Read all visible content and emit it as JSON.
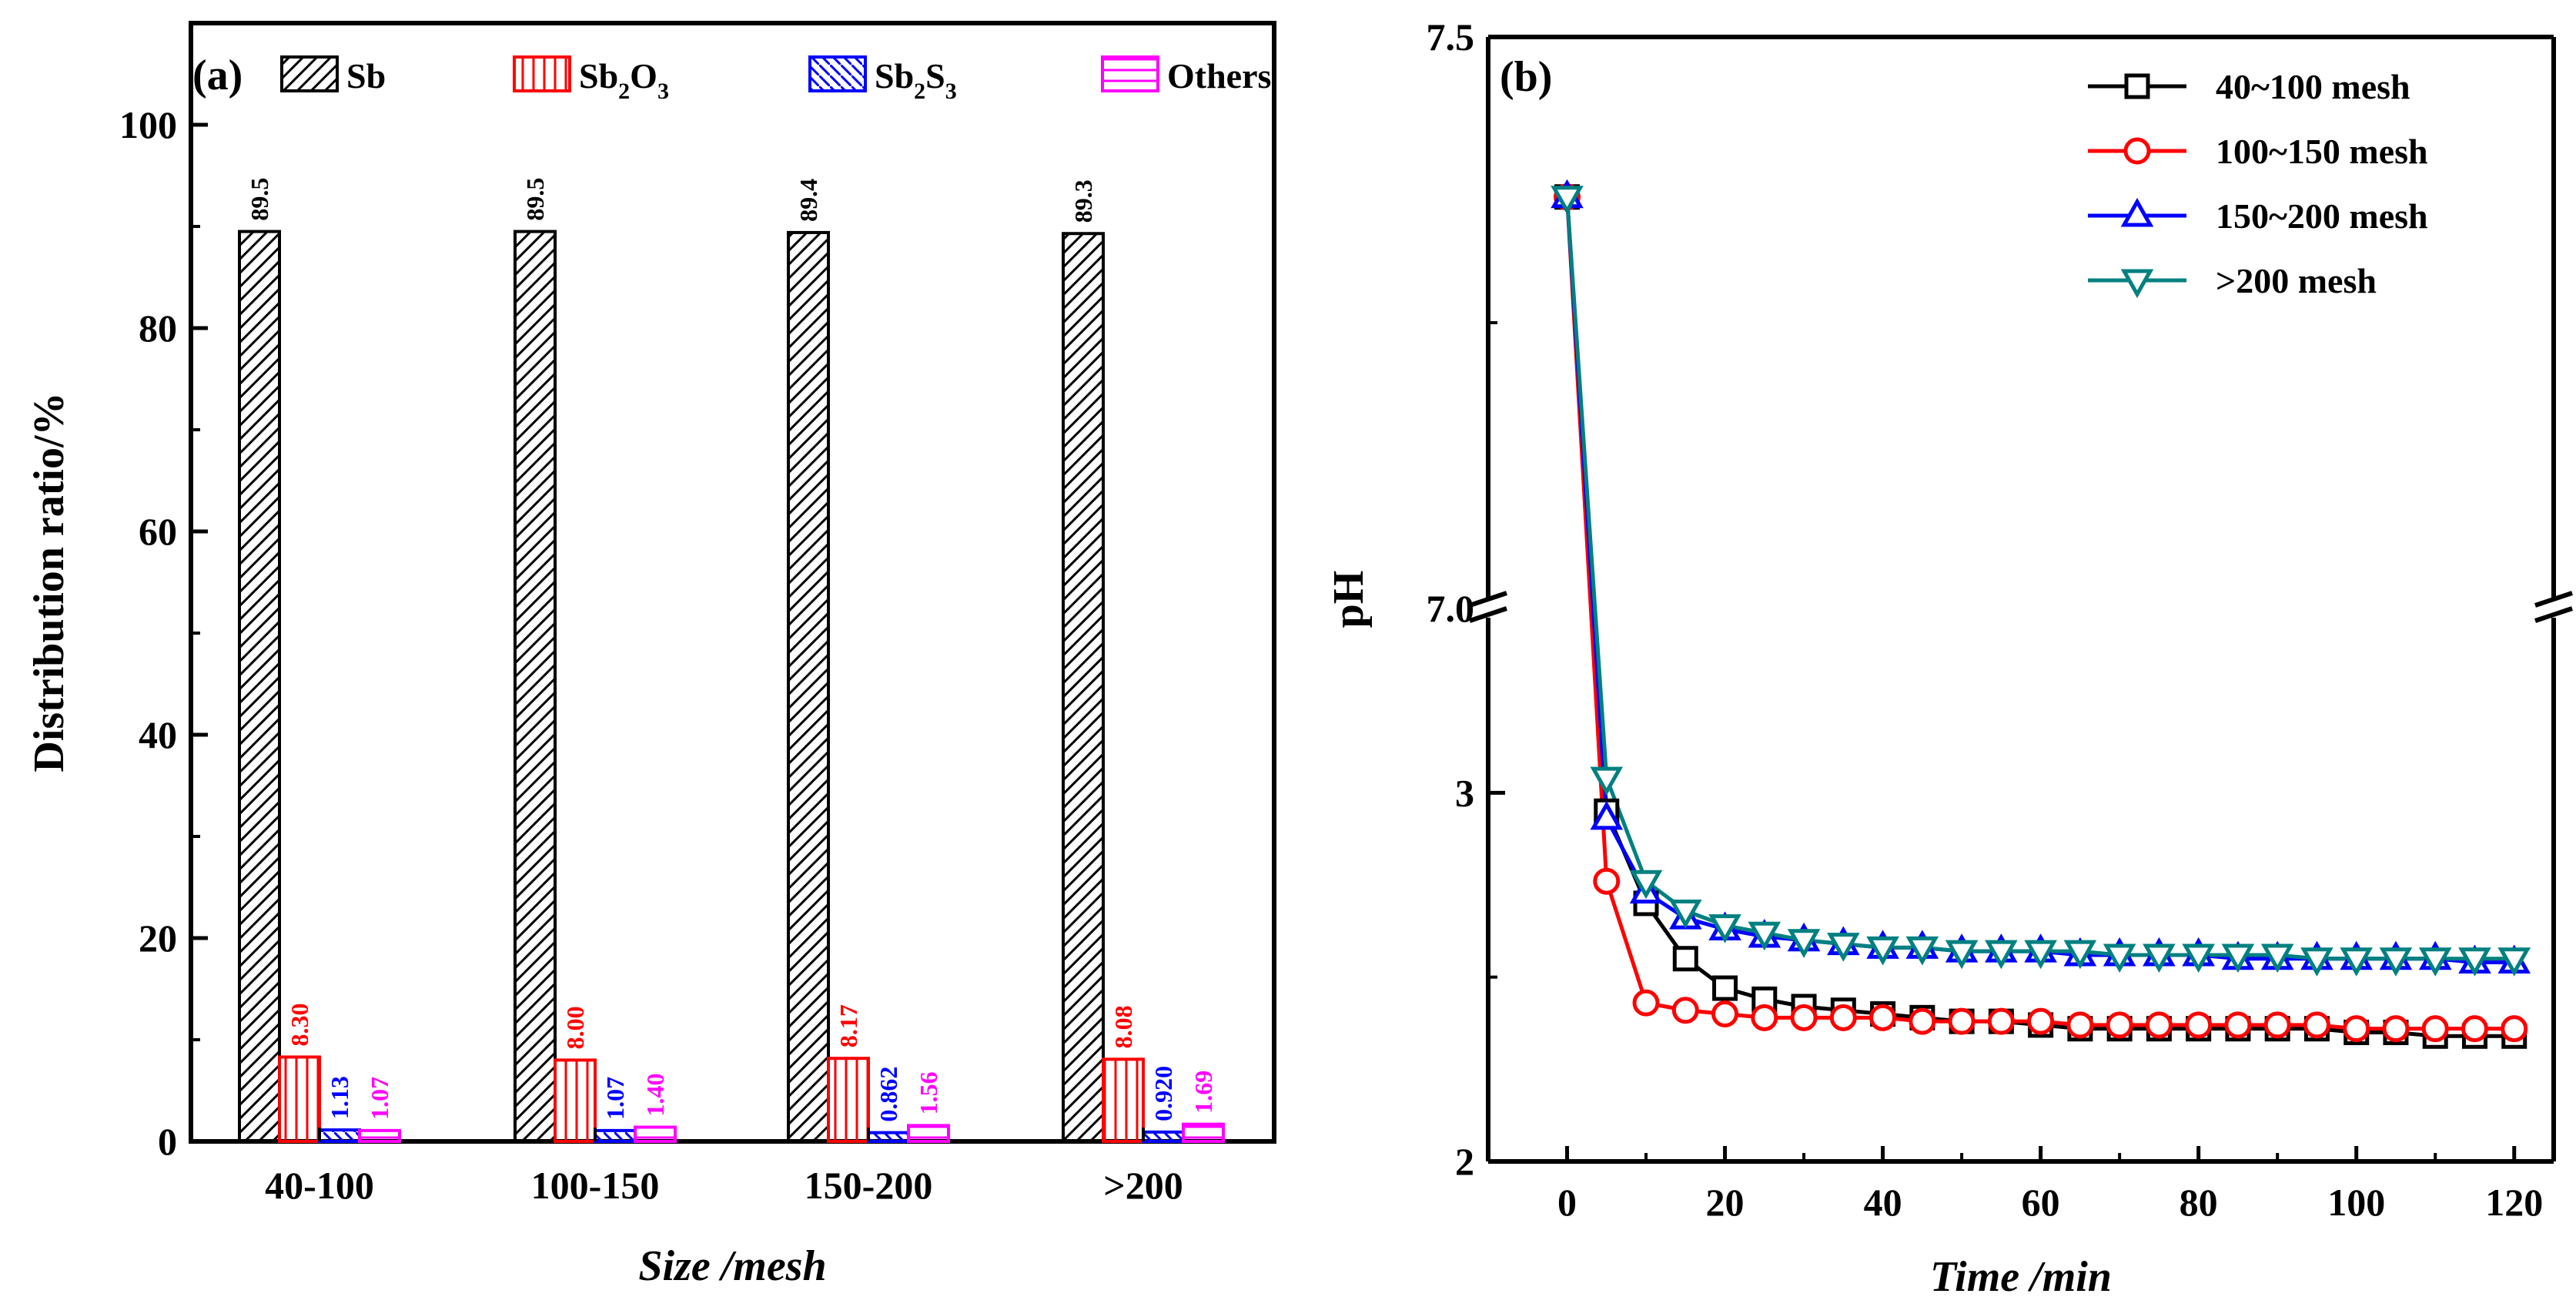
{
  "chart_data": [
    {
      "type": "bar",
      "panel_label": "(a)",
      "categories": [
        "40-100",
        "100-150",
        "150-200",
        ">200"
      ],
      "series": [
        {
          "name": "Sb",
          "color": "#000000",
          "pattern": "diagonal",
          "values": [
            89.5,
            89.5,
            89.4,
            89.3
          ],
          "labels": [
            "89.5",
            "89.5",
            "89.4",
            "89.3"
          ]
        },
        {
          "name": "Sb2O3",
          "color": "#ff0000",
          "pattern": "vertical",
          "values": [
            8.3,
            8.0,
            8.17,
            8.08
          ],
          "labels": [
            "8.30",
            "8.00",
            "8.17",
            "8.08"
          ]
        },
        {
          "name": "Sb2S3",
          "color": "#0000ff",
          "pattern": "back-diagonal",
          "values": [
            1.13,
            1.07,
            0.862,
            0.92
          ],
          "labels": [
            "1.13",
            "1.07",
            "0.862",
            "0.920"
          ]
        },
        {
          "name": "Others",
          "color": "#ff00ff",
          "pattern": "horizontal",
          "values": [
            1.07,
            1.4,
            1.56,
            1.69
          ],
          "labels": [
            "1.07",
            "1.40",
            "1.56",
            "1.69"
          ]
        }
      ],
      "legend": [
        {
          "base": "Sb",
          "parts": []
        },
        {
          "base": "Sb",
          "parts": [
            [
              "2",
              "sub"
            ],
            [
              "O",
              "n"
            ],
            [
              "3",
              "sub"
            ]
          ]
        },
        {
          "base": "Sb",
          "parts": [
            [
              "2",
              "sub"
            ],
            [
              "S",
              "n"
            ],
            [
              "3",
              "sub"
            ]
          ]
        },
        {
          "base": "Others",
          "parts": []
        }
      ],
      "legend_placement": "top",
      "xlabel": "Size /mesh",
      "ylabel": "Distribution ratio/%",
      "ylim": [
        0,
        110
      ],
      "yticks": [
        0,
        20,
        40,
        60,
        80,
        100
      ],
      "grid": false
    },
    {
      "type": "line",
      "panel_label": "(b)",
      "xlabel": "Time /min",
      "ylabel": "pH",
      "xlim": [
        -10,
        125
      ],
      "xticks": [
        0,
        20,
        40,
        60,
        80,
        100,
        120
      ],
      "y_axis_break": {
        "lower_range": [
          2,
          3.5
        ],
        "upper_range": [
          7.0,
          7.5
        ]
      },
      "yticks": [
        2,
        3,
        7.0,
        7.5
      ],
      "ytick_labels": [
        "2",
        "3",
        "7.0",
        "7.5"
      ],
      "grid": false,
      "legend_placement": "top-right",
      "x": [
        0,
        5,
        10,
        15,
        20,
        25,
        30,
        35,
        40,
        45,
        50,
        55,
        60,
        65,
        70,
        75,
        80,
        85,
        90,
        95,
        100,
        105,
        110,
        115,
        120
      ],
      "series": [
        {
          "name": "40~100 mesh",
          "color": "#000000",
          "marker": "square",
          "values": [
            7.36,
            2.95,
            2.7,
            2.55,
            2.47,
            2.44,
            2.42,
            2.41,
            2.4,
            2.39,
            2.38,
            2.38,
            2.37,
            2.36,
            2.36,
            2.36,
            2.36,
            2.36,
            2.36,
            2.36,
            2.35,
            2.35,
            2.34,
            2.34,
            2.34
          ]
        },
        {
          "name": "100~150 mesh",
          "color": "#ff0000",
          "marker": "circle",
          "values": [
            7.36,
            2.76,
            2.43,
            2.41,
            2.4,
            2.39,
            2.39,
            2.39,
            2.39,
            2.38,
            2.38,
            2.38,
            2.38,
            2.37,
            2.37,
            2.37,
            2.37,
            2.37,
            2.37,
            2.37,
            2.36,
            2.36,
            2.36,
            2.36,
            2.36
          ]
        },
        {
          "name": "150~200 mesh",
          "color": "#0000ff",
          "marker": "triangle-up",
          "values": [
            7.36,
            2.93,
            2.73,
            2.66,
            2.63,
            2.61,
            2.6,
            2.59,
            2.58,
            2.58,
            2.57,
            2.57,
            2.57,
            2.56,
            2.56,
            2.56,
            2.56,
            2.55,
            2.55,
            2.55,
            2.55,
            2.55,
            2.55,
            2.54,
            2.54
          ]
        },
        {
          "name": ">200 mesh",
          "color": "#008080",
          "marker": "triangle-down",
          "values": [
            7.36,
            3.04,
            2.76,
            2.68,
            2.64,
            2.62,
            2.6,
            2.59,
            2.58,
            2.58,
            2.57,
            2.57,
            2.57,
            2.57,
            2.56,
            2.56,
            2.56,
            2.56,
            2.56,
            2.55,
            2.55,
            2.55,
            2.55,
            2.55,
            2.55
          ]
        }
      ]
    }
  ]
}
